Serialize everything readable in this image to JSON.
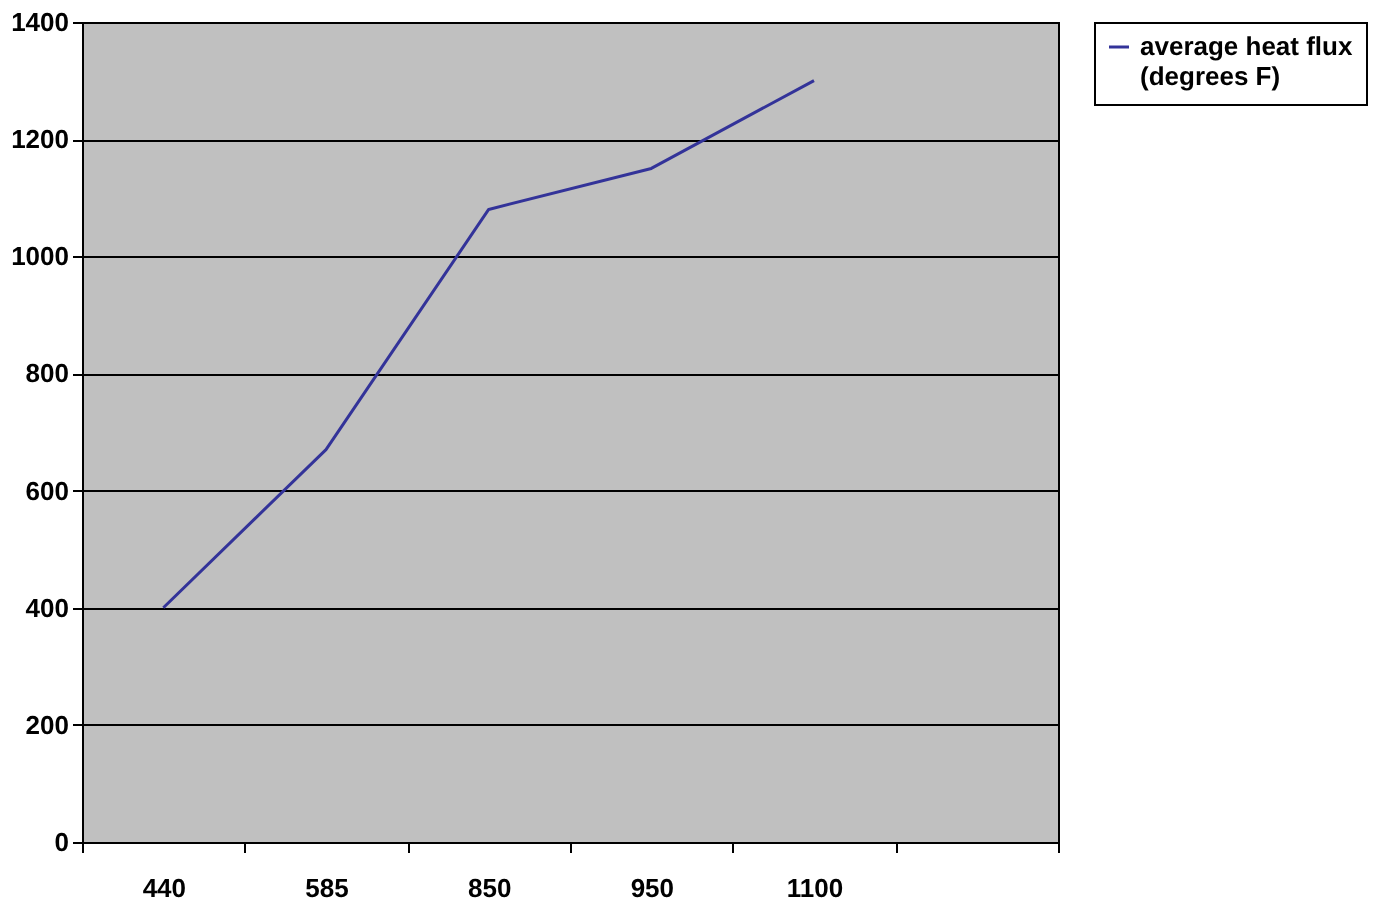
{
  "chart_data": {
    "type": "line",
    "categories": [
      "440",
      "585",
      "850",
      "950",
      "1100",
      null
    ],
    "series": [
      {
        "name": "average heat flux (degrees F)",
        "color": "#333399",
        "values": [
          400,
          670,
          1080,
          1150,
          1300,
          null
        ]
      }
    ],
    "ylim": [
      0,
      1400
    ],
    "yticks": [
      0,
      200,
      400,
      600,
      800,
      1000,
      1200,
      1400
    ],
    "grid": "y",
    "legend": "right",
    "marker": "none"
  }
}
